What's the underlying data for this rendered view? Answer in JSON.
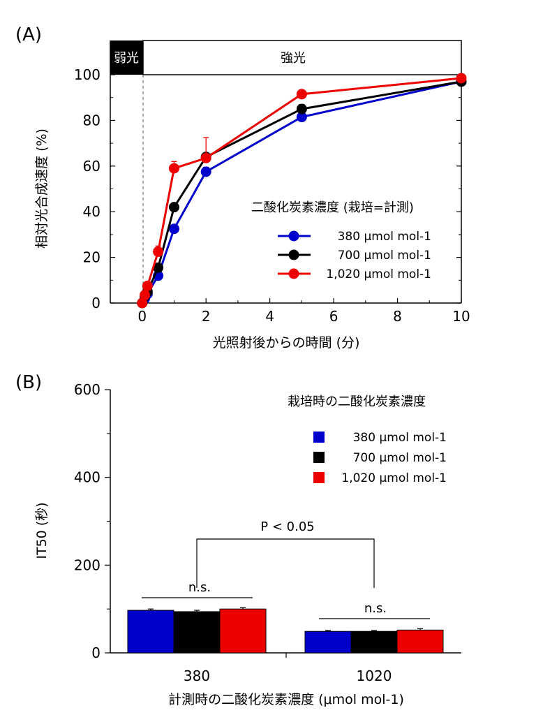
{
  "chart_data": [
    {
      "panel": "(A)",
      "type": "line",
      "xlabel": "光照射後からの時間 (分)",
      "ylabel": "相対光合成速度 (%)",
      "xlim": [
        -1,
        10
      ],
      "ylim": [
        0,
        115
      ],
      "xticks": [
        0,
        2,
        4,
        6,
        8,
        10
      ],
      "yticks": [
        0,
        20,
        40,
        60,
        80,
        100
      ],
      "band": {
        "left_label": "弱光",
        "right_label": "強光",
        "boundary_x": 0
      },
      "legend_title": "二酸化炭素濃度 (栽培=計測)",
      "legend_position": "center-right",
      "series": [
        {
          "name": "380 μmol mol-1",
          "color": "#0000cc",
          "points": [
            [
              0,
              0
            ],
            [
              0.083,
              2
            ],
            [
              0.167,
              4
            ],
            [
              0.5,
              12
            ],
            [
              1,
              32.5
            ],
            [
              2,
              57.5
            ],
            [
              5,
              81.5
            ],
            [
              10,
              97
            ]
          ],
          "errors": [
            0,
            0.5,
            0.5,
            1,
            1.5,
            2,
            1.5,
            1
          ]
        },
        {
          "name": "700 μmol mol-1",
          "color": "#000000",
          "points": [
            [
              0,
              0
            ],
            [
              0.083,
              3
            ],
            [
              0.167,
              5
            ],
            [
              0.5,
              15.5
            ],
            [
              1,
              42
            ],
            [
              2,
              64
            ],
            [
              5,
              85
            ],
            [
              10,
              97
            ]
          ],
          "errors": [
            0,
            0.5,
            0.5,
            1,
            1.5,
            1.5,
            2,
            1
          ]
        },
        {
          "name": "1,020 μmol mol-1",
          "color": "#ee0000",
          "points": [
            [
              0,
              0
            ],
            [
              0.083,
              3.5
            ],
            [
              0.167,
              7.5
            ],
            [
              0.5,
              22.5
            ],
            [
              1,
              59
            ],
            [
              2,
              63.5
            ],
            [
              5,
              91.5
            ],
            [
              10,
              98.5
            ]
          ],
          "errors": [
            0,
            0.5,
            0.5,
            2.5,
            3,
            9,
            1.5,
            1
          ]
        }
      ]
    },
    {
      "panel": "(B)",
      "type": "bar",
      "xlabel": "計測時の二酸化炭素濃度 (μmol mol-1)",
      "ylabel": "IT50 (秒)",
      "ylim": [
        0,
        600
      ],
      "yticks": [
        0,
        200,
        400,
        600
      ],
      "categories": [
        "380",
        "1020"
      ],
      "legend_title": "栽培時の二酸化炭素濃度",
      "legend_position": "top-right",
      "series": [
        {
          "name": "380 μmol mol-1",
          "color": "#0000cc",
          "values": [
            97,
            49
          ],
          "errors": [
            3,
            2
          ]
        },
        {
          "name": "700 μmol mol-1",
          "color": "#000000",
          "values": [
            94,
            49
          ],
          "errors": [
            3,
            2
          ]
        },
        {
          "name": "1,020 μmol mol-1",
          "color": "#ee0000",
          "values": [
            100,
            52
          ],
          "errors": [
            3,
            3
          ]
        }
      ],
      "annotations": {
        "group_1": "n.s.",
        "group_2": "n.s.",
        "between_groups": "P < 0.05"
      }
    }
  ]
}
